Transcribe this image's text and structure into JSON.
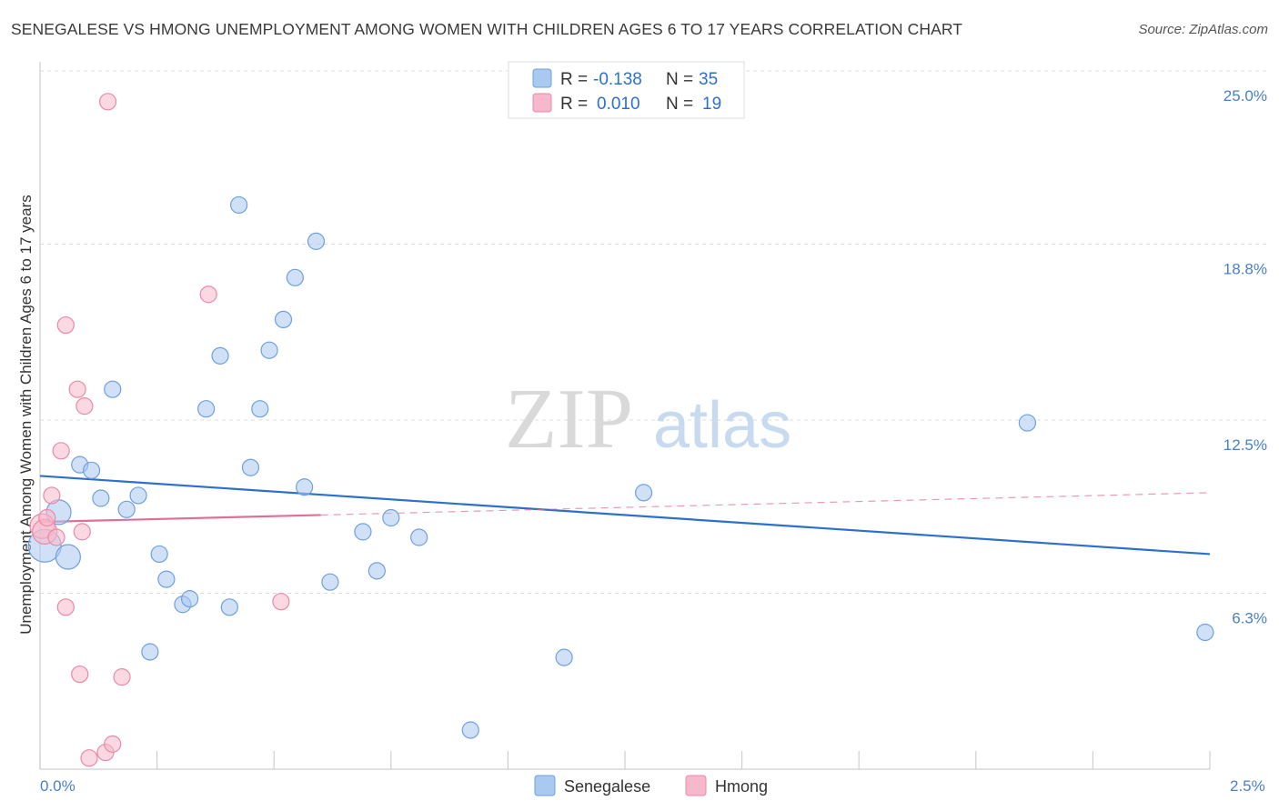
{
  "title": "SENEGALESE VS HMONG UNEMPLOYMENT AMONG WOMEN WITH CHILDREN AGES 6 TO 17 YEARS CORRELATION CHART",
  "source": "Source: ZipAtlas.com",
  "watermark": {
    "zip": "ZIP",
    "atlas": "atlas"
  },
  "colors": {
    "senegalese_fill": "#a9c9f0",
    "senegalese_stroke": "#6fa0de",
    "senegalese_line": "#2d6fcc",
    "hmong_fill": "#f7b8cb",
    "hmong_stroke": "#e88aa8",
    "hmong_line": "#e06f98",
    "tick_text": "#4a7fc8",
    "grid": "#dddddd"
  },
  "legend": {
    "rows": [
      {
        "r_label": "R =",
        "r_value": "-0.138",
        "n_label": "N =",
        "n_value": "35"
      },
      {
        "r_label": "R =",
        "r_value": "0.010",
        "n_label": "N =",
        "n_value": "19"
      }
    ]
  },
  "chart_data": {
    "type": "scatter",
    "title": "SENEGALESE VS HMONG UNEMPLOYMENT AMONG WOMEN WITH CHILDREN AGES 6 TO 17 YEARS CORRELATION CHART",
    "xlabel": "",
    "ylabel": "Unemployment Among Women with Children Ages 6 to 17 years",
    "xlim": [
      0.0,
      2.5
    ],
    "ylim": [
      0.0,
      25.0
    ],
    "x_tick_labels": [
      "0.0%",
      "2.5%"
    ],
    "y_ticks": [
      6.3,
      12.5,
      18.8,
      25.0
    ],
    "y_tick_labels": [
      "6.3%",
      "12.5%",
      "18.8%",
      "25.0%"
    ],
    "grid": true,
    "series": [
      {
        "name": "Senegalese",
        "r": -0.138,
        "n": 35,
        "trend": {
          "x": [
            0.0,
            2.5
          ],
          "y": [
            10.5,
            7.7
          ]
        },
        "points": [
          [
            0.01,
            8.0,
            2
          ],
          [
            0.04,
            9.2,
            1.5
          ],
          [
            0.06,
            7.6,
            1.5
          ],
          [
            0.085,
            10.9,
            1
          ],
          [
            0.11,
            10.7,
            1
          ],
          [
            0.13,
            9.7,
            1
          ],
          [
            0.155,
            13.6,
            1
          ],
          [
            0.185,
            9.3,
            1
          ],
          [
            0.21,
            9.8,
            1
          ],
          [
            0.255,
            7.7,
            1
          ],
          [
            0.27,
            6.8,
            1
          ],
          [
            0.305,
            5.9,
            1
          ],
          [
            0.32,
            6.1,
            1
          ],
          [
            0.235,
            4.2,
            1
          ],
          [
            0.355,
            12.9,
            1
          ],
          [
            0.385,
            14.8,
            1
          ],
          [
            0.405,
            5.8,
            1
          ],
          [
            0.425,
            20.2,
            1
          ],
          [
            0.45,
            10.8,
            1
          ],
          [
            0.47,
            12.9,
            1
          ],
          [
            0.49,
            15.0,
            1
          ],
          [
            0.52,
            16.1,
            1
          ],
          [
            0.545,
            17.6,
            1
          ],
          [
            0.565,
            10.1,
            1
          ],
          [
            0.59,
            18.9,
            1
          ],
          [
            0.62,
            6.7,
            1
          ],
          [
            0.69,
            8.5,
            1
          ],
          [
            0.72,
            7.1,
            1
          ],
          [
            0.75,
            9.0,
            1
          ],
          [
            0.81,
            8.3,
            1
          ],
          [
            0.92,
            1.4,
            1
          ],
          [
            1.12,
            4.0,
            1
          ],
          [
            1.29,
            9.9,
            1
          ],
          [
            2.11,
            12.4,
            1
          ],
          [
            2.49,
            4.9,
            1
          ]
        ]
      },
      {
        "name": "Hmong",
        "r": 0.01,
        "n": 19,
        "trend": {
          "x": [
            0.0,
            0.6
          ],
          "y": [
            8.85,
            9.1
          ]
        },
        "trend_extended": {
          "x": [
            0.6,
            2.5
          ],
          "y": [
            9.1,
            9.9
          ]
        },
        "points": [
          [
            0.005,
            8.7,
            1.5
          ],
          [
            0.01,
            8.5,
            1.5
          ],
          [
            0.015,
            9.0,
            1
          ],
          [
            0.025,
            9.8,
            1
          ],
          [
            0.035,
            8.3,
            1
          ],
          [
            0.045,
            11.4,
            1
          ],
          [
            0.055,
            15.9,
            1
          ],
          [
            0.055,
            5.8,
            1
          ],
          [
            0.08,
            13.6,
            1
          ],
          [
            0.085,
            3.4,
            1
          ],
          [
            0.09,
            8.5,
            1
          ],
          [
            0.095,
            13.0,
            1
          ],
          [
            0.105,
            0.4,
            1
          ],
          [
            0.14,
            0.6,
            1
          ],
          [
            0.145,
            23.9,
            1
          ],
          [
            0.155,
            0.9,
            1
          ],
          [
            0.175,
            3.3,
            1
          ],
          [
            0.36,
            17.0,
            1
          ],
          [
            0.515,
            6.0,
            1
          ]
        ]
      }
    ],
    "legend_position": "top-center",
    "bottom_legend": [
      "Senegalese",
      "Hmong"
    ]
  }
}
